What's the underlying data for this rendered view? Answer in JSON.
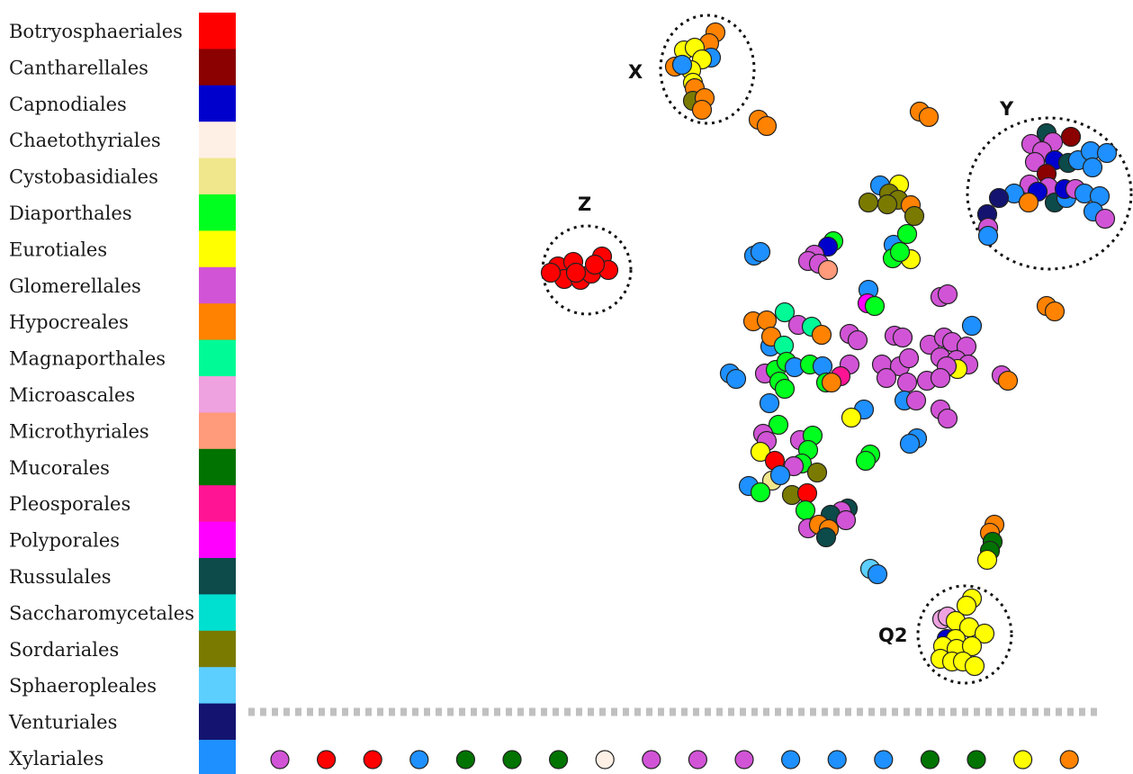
{
  "legend": [
    {
      "name": "Botryosphaeriales",
      "color": "#ff0000"
    },
    {
      "name": "Cantharellales",
      "color": "#8b0000"
    },
    {
      "name": "Capnodiales",
      "color": "#0000cd"
    },
    {
      "name": "Chaetothyriales",
      "color": "#fff0e6"
    },
    {
      "name": "Cystobasidiales",
      "color": "#f0e68c"
    },
    {
      "name": "Diaporthales",
      "color": "#00ff1e"
    },
    {
      "name": "Eurotiales",
      "color": "#ffff00"
    },
    {
      "name": "Glomerellales",
      "color": "#d154d6"
    },
    {
      "name": "Hypocreales",
      "color": "#ff8200"
    },
    {
      "name": "Magnaporthales",
      "color": "#00fa96"
    },
    {
      "name": "Microascales",
      "color": "#eea2e0"
    },
    {
      "name": "Microthyriales",
      "color": "#ff9a7a"
    },
    {
      "name": "Mucorales",
      "color": "#007300"
    },
    {
      "name": "Pleosporales",
      "color": "#ff1493"
    },
    {
      "name": "Polyporales",
      "color": "#ff00ff"
    },
    {
      "name": "Russulales",
      "color": "#0d4a4a"
    },
    {
      "name": "Saccharomycetales",
      "color": "#00e0d0"
    },
    {
      "name": "Sordariales",
      "color": "#7a7a00"
    },
    {
      "name": "Sphaeropleales",
      "color": "#5ccfff"
    },
    {
      "name": "Venturiales",
      "color": "#141470"
    },
    {
      "name": "Xylariales",
      "color": "#1e90ff"
    }
  ],
  "clusters": [
    {
      "label": "X"
    },
    {
      "label": "Y"
    },
    {
      "label": "Z"
    },
    {
      "label": "Q2"
    }
  ],
  "bottom_row": [
    "Glomerellales",
    "Botryosphaeriales",
    "Botryosphaeriales",
    "Xylariales",
    "Mucorales",
    "Mucorales",
    "Mucorales",
    "Chaetothyriales",
    "Glomerellales",
    "Glomerellales",
    "Glomerellales",
    "Xylariales",
    "Xylariales",
    "Xylariales",
    "Mucorales",
    "Mucorales",
    "Eurotiales",
    "Hypocreales"
  ]
}
